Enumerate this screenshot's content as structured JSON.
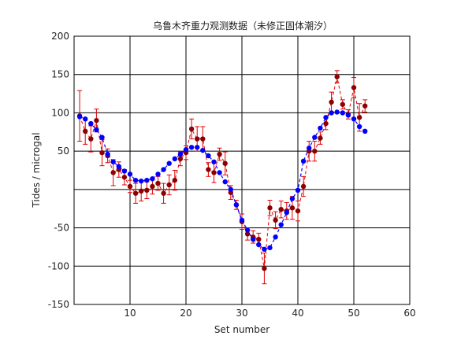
{
  "chart_data": {
    "type": "line",
    "title": "乌鲁木齐重力观测数据（未修正固体潮汐）",
    "xlabel": "Set number",
    "ylabel": "Tides / microgal",
    "xlim": [
      0,
      60
    ],
    "ylim": [
      -150,
      200
    ],
    "x_ticks": [
      10,
      20,
      30,
      40,
      50,
      60
    ],
    "y_ticks": [
      -150,
      -100,
      -50,
      50,
      100,
      150,
      200
    ],
    "grid": true,
    "legend": "none",
    "series": [
      {
        "style": "observed, dark red dots with red error bars and red dashed line",
        "color": "#8b0000",
        "error_color": "#e00000",
        "x": [
          1,
          2,
          3,
          4,
          5,
          6,
          7,
          8,
          9,
          10,
          11,
          12,
          13,
          14,
          15,
          16,
          17,
          18,
          19,
          20,
          21,
          22,
          23,
          24,
          25,
          26,
          27,
          28,
          29,
          30,
          31,
          32,
          33,
          34,
          35,
          36,
          37,
          38,
          39,
          40,
          41,
          42,
          43,
          44,
          45,
          46,
          47,
          48,
          49,
          50,
          51,
          52
        ],
        "y": [
          96,
          76,
          66,
          90,
          48,
          44,
          22,
          26,
          16,
          4,
          -5,
          -2,
          -1,
          4,
          8,
          -5,
          6,
          12,
          40,
          48,
          79,
          66,
          66,
          26,
          22,
          46,
          34,
          -4,
          -20,
          -42,
          -58,
          -62,
          -65,
          -103,
          -24,
          -40,
          -26,
          -28,
          -24,
          -28,
          4,
          50,
          50,
          67,
          86,
          114,
          147,
          111,
          98,
          133,
          94,
          109
        ],
        "err": [
          33,
          17,
          17,
          15,
          17,
          9,
          17,
          10,
          10,
          8,
          13,
          13,
          11,
          10,
          9,
          13,
          13,
          13,
          9,
          9,
          13,
          16,
          16,
          9,
          13,
          8,
          15,
          9,
          6,
          10,
          8,
          8,
          8,
          20,
          10,
          11,
          11,
          11,
          15,
          13,
          13,
          13,
          13,
          8,
          8,
          13,
          8,
          6,
          6,
          13,
          18,
          8
        ]
      },
      {
        "style": "model, blue dots with blue dashed line",
        "color": "#0000ff",
        "x": [
          1,
          2,
          3,
          4,
          5,
          6,
          7,
          8,
          9,
          10,
          11,
          12,
          13,
          14,
          15,
          16,
          17,
          18,
          19,
          20,
          21,
          22,
          23,
          24,
          25,
          26,
          27,
          28,
          29,
          30,
          31,
          32,
          33,
          34,
          35,
          36,
          37,
          38,
          39,
          40,
          41,
          42,
          43,
          44,
          45,
          46,
          47,
          48,
          49,
          50,
          51,
          52
        ],
        "y": [
          95,
          92,
          86,
          78,
          68,
          46,
          36,
          30,
          24,
          20,
          12,
          11,
          12,
          14,
          20,
          26,
          34,
          40,
          46,
          52,
          55,
          55,
          51,
          44,
          36,
          22,
          10,
          0,
          -20,
          -40,
          -53,
          -65,
          -72,
          -78,
          -76,
          -62,
          -46,
          -30,
          -12,
          -1,
          37,
          54,
          68,
          80,
          94,
          100,
          101,
          100,
          97,
          92,
          82,
          76
        ]
      }
    ]
  }
}
